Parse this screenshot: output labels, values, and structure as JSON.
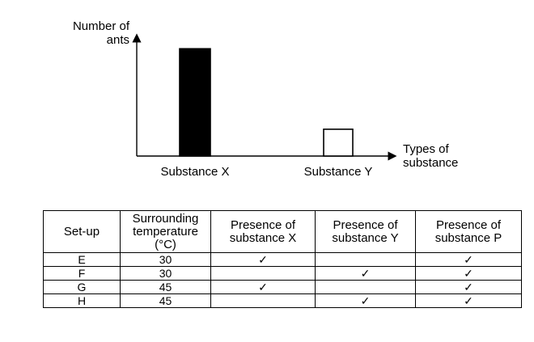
{
  "chart_data": {
    "type": "bar",
    "ylabel": "Number of\nants",
    "xlabel": "Types of\nsubstance",
    "categories": [
      "Substance X",
      "Substance Y"
    ],
    "values": [
      100,
      25
    ],
    "bar_fills": [
      "#000000",
      "#ffffff"
    ],
    "ylim": [
      0,
      110
    ],
    "grid": false,
    "y_ticks_shown": false
  },
  "table": {
    "headers": [
      "Set-up",
      "Surrounding\ntemperature\n(°C)",
      "Presence of\nsubstance X",
      "Presence of\nsubstance Y",
      "Presence of\nsubstance P"
    ],
    "rows": [
      [
        "E",
        "30",
        "✓",
        "",
        "✓"
      ],
      [
        "F",
        "30",
        "",
        "✓",
        "✓"
      ],
      [
        "G",
        "45",
        "✓",
        "",
        "✓"
      ],
      [
        "H",
        "45",
        "",
        "✓",
        "✓"
      ]
    ]
  }
}
